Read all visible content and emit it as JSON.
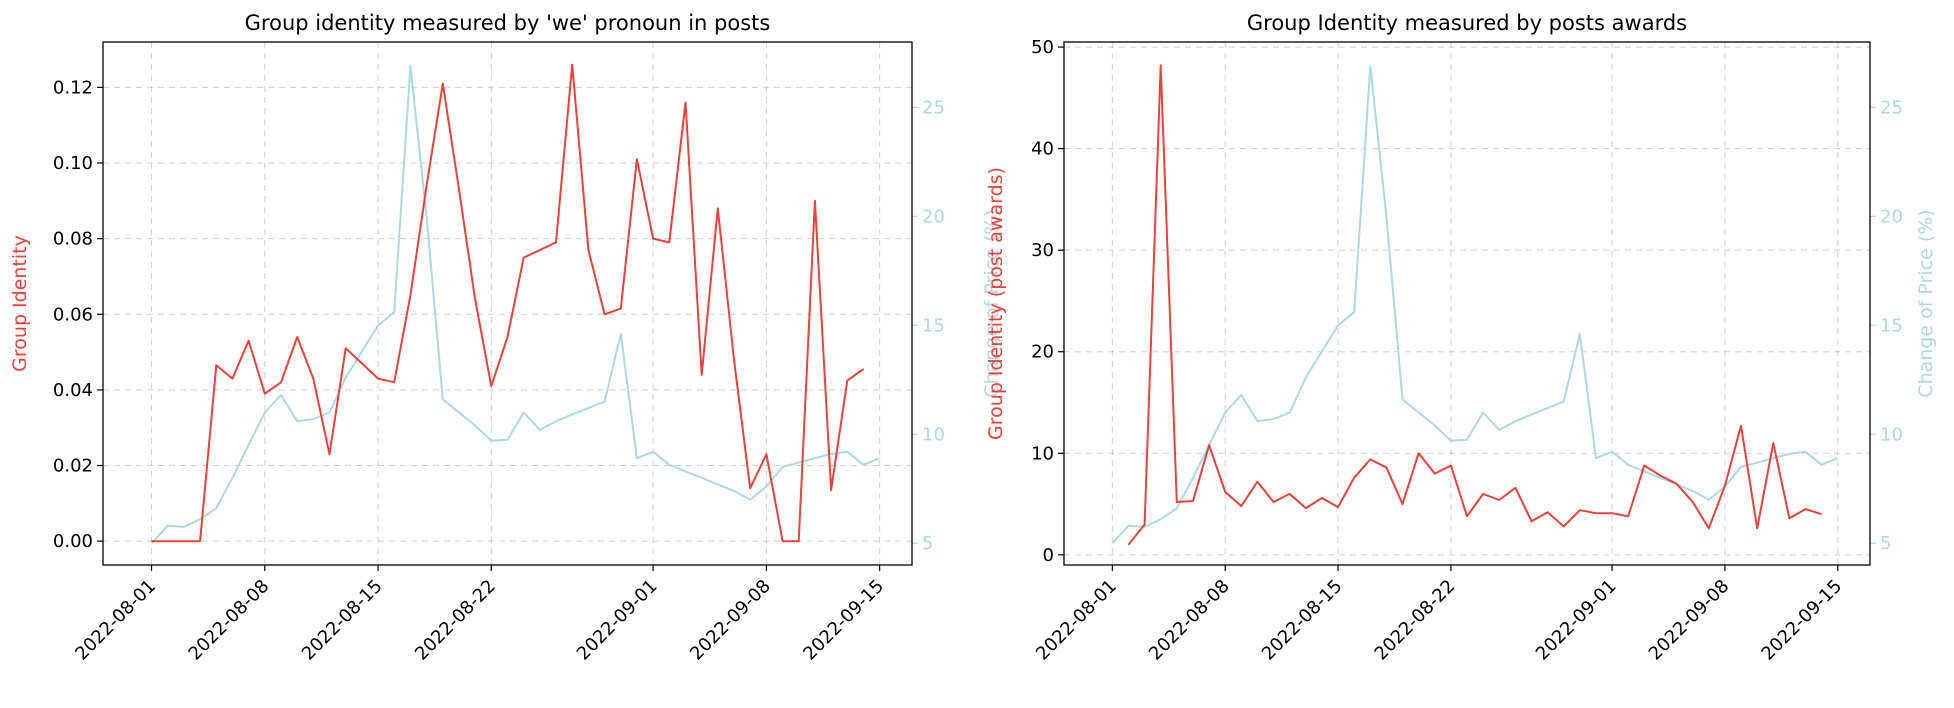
{
  "colors": {
    "primary": "#e8423a",
    "secondary": "#add8e6"
  },
  "chart_data": [
    {
      "type": "line",
      "title": "Group identity measured by 'we' pronoun in posts",
      "ylabel": "Group Identity",
      "y2label": "Change of Price (%)",
      "xlabel": "",
      "grid": true,
      "x_ticks": [
        "2022-08-01",
        "2022-08-08",
        "2022-08-15",
        "2022-08-22",
        "2022-09-01",
        "2022-09-08",
        "2022-09-15"
      ],
      "x_range": [
        "2022-07-29",
        "2022-09-17"
      ],
      "y_ticks": [
        "0.00",
        "0.02",
        "0.04",
        "0.06",
        "0.08",
        "0.10",
        "0.12"
      ],
      "ylim": [
        -0.0063,
        0.132
      ],
      "y2_ticks": [
        "5",
        "10",
        "15",
        "20",
        "25"
      ],
      "y2lim": [
        4.0,
        28.0
      ],
      "series": [
        {
          "axis": "left",
          "x": [
            "2022-08-01",
            "2022-08-02",
            "2022-08-03",
            "2022-08-04",
            "2022-08-05",
            "2022-08-06",
            "2022-08-07",
            "2022-08-08",
            "2022-08-09",
            "2022-08-10",
            "2022-08-11",
            "2022-08-12",
            "2022-08-13",
            "2022-08-14",
            "2022-08-15",
            "2022-08-16",
            "2022-08-17",
            "2022-08-18",
            "2022-08-19",
            "2022-08-20",
            "2022-08-21",
            "2022-08-22",
            "2022-08-23",
            "2022-08-24",
            "2022-08-25",
            "2022-08-26",
            "2022-08-27",
            "2022-08-28",
            "2022-08-29",
            "2022-08-30",
            "2022-08-31",
            "2022-09-01",
            "2022-09-02",
            "2022-09-03",
            "2022-09-04",
            "2022-09-05",
            "2022-09-06",
            "2022-09-07",
            "2022-09-08",
            "2022-09-09",
            "2022-09-10",
            "2022-09-11",
            "2022-09-12",
            "2022-09-13",
            "2022-09-14"
          ],
          "values": [
            0.0,
            0.0,
            0.0,
            0.0,
            0.0465,
            0.043,
            0.053,
            0.039,
            0.042,
            0.054,
            0.043,
            0.023,
            0.051,
            0.047,
            0.043,
            0.042,
            0.065,
            0.094,
            0.121,
            0.093,
            0.064,
            0.041,
            0.054,
            0.075,
            0.077,
            0.079,
            0.126,
            0.077,
            0.06,
            0.0615,
            0.101,
            0.08,
            0.079,
            0.116,
            0.044,
            0.088,
            0.048,
            0.014,
            0.023,
            0.0,
            0.0,
            0.09,
            0.0135,
            0.0425,
            0.0455
          ]
        },
        {
          "axis": "right",
          "x": [
            "2022-08-01",
            "2022-08-02",
            "2022-08-03",
            "2022-08-04",
            "2022-08-05",
            "2022-08-06",
            "2022-08-07",
            "2022-08-08",
            "2022-08-09",
            "2022-08-10",
            "2022-08-11",
            "2022-08-12",
            "2022-08-13",
            "2022-08-14",
            "2022-08-15",
            "2022-08-16",
            "2022-08-17",
            "2022-08-18",
            "2022-08-19",
            "2022-08-20",
            "2022-08-21",
            "2022-08-22",
            "2022-08-23",
            "2022-08-24",
            "2022-08-25",
            "2022-08-26",
            "2022-08-27",
            "2022-08-28",
            "2022-08-29",
            "2022-08-30",
            "2022-08-31",
            "2022-09-01",
            "2022-09-02",
            "2022-09-03",
            "2022-09-04",
            "2022-09-05",
            "2022-09-06",
            "2022-09-07",
            "2022-09-08",
            "2022-09-09",
            "2022-09-10",
            "2022-09-11",
            "2022-09-12",
            "2022-09-13",
            "2022-09-14",
            "2022-09-15"
          ],
          "values": [
            5.0,
            5.8,
            5.75,
            6.1,
            6.6,
            8.0,
            9.5,
            11.0,
            11.8,
            10.6,
            10.7,
            11.0,
            12.6,
            13.8,
            15.0,
            15.6,
            26.9,
            20.0,
            11.6,
            11.0,
            10.4,
            9.7,
            9.75,
            11.0,
            10.2,
            10.6,
            10.9,
            11.2,
            11.5,
            14.6,
            8.9,
            9.2,
            8.6,
            8.3,
            8.0,
            7.7,
            7.4,
            7.0,
            7.6,
            8.5,
            8.7,
            8.9,
            9.1,
            9.2,
            8.6,
            8.9
          ]
        }
      ]
    },
    {
      "type": "line",
      "title": "Group Identity measured by posts awards",
      "ylabel": "Group Identity (post awards)",
      "y2label": "Change of Price (%)",
      "xlabel": "",
      "grid": true,
      "x_ticks": [
        "2022-08-01",
        "2022-08-08",
        "2022-08-15",
        "2022-08-22",
        "2022-09-01",
        "2022-09-08",
        "2022-09-15"
      ],
      "x_range": [
        "2022-07-29",
        "2022-09-17"
      ],
      "y_ticks": [
        "0",
        "10",
        "20",
        "30",
        "40",
        "50"
      ],
      "ylim": [
        -1.0,
        50.5
      ],
      "y2_ticks": [
        "5",
        "10",
        "15",
        "20",
        "25"
      ],
      "y2lim": [
        4.0,
        28.0
      ],
      "series": [
        {
          "axis": "left",
          "x": [
            "2022-08-02",
            "2022-08-03",
            "2022-08-04",
            "2022-08-05",
            "2022-08-06",
            "2022-08-07",
            "2022-08-08",
            "2022-08-09",
            "2022-08-10",
            "2022-08-11",
            "2022-08-12",
            "2022-08-13",
            "2022-08-14",
            "2022-08-15",
            "2022-08-16",
            "2022-08-17",
            "2022-08-18",
            "2022-08-19",
            "2022-08-20",
            "2022-08-21",
            "2022-08-22",
            "2022-08-23",
            "2022-08-24",
            "2022-08-25",
            "2022-08-26",
            "2022-08-27",
            "2022-08-28",
            "2022-08-29",
            "2022-08-30",
            "2022-08-31",
            "2022-09-01",
            "2022-09-02",
            "2022-09-03",
            "2022-09-04",
            "2022-09-05",
            "2022-09-06",
            "2022-09-07",
            "2022-09-08",
            "2022-09-09",
            "2022-09-10",
            "2022-09-11",
            "2022-09-12",
            "2022-09-13",
            "2022-09-14"
          ],
          "values": [
            1.0,
            3.0,
            48.2,
            5.2,
            5.3,
            10.8,
            6.2,
            4.8,
            7.2,
            5.2,
            6.0,
            4.6,
            5.6,
            4.7,
            7.6,
            9.4,
            8.6,
            5.0,
            10.0,
            8.0,
            8.8,
            3.8,
            6.0,
            5.4,
            6.6,
            3.3,
            4.2,
            2.8,
            4.4,
            4.1,
            4.1,
            3.8,
            8.8,
            7.8,
            7.0,
            5.2,
            2.6,
            6.8,
            12.7,
            2.6,
            11.0,
            3.6,
            4.5,
            4.0
          ]
        },
        {
          "axis": "right",
          "x": [
            "2022-08-01",
            "2022-08-02",
            "2022-08-03",
            "2022-08-04",
            "2022-08-05",
            "2022-08-06",
            "2022-08-07",
            "2022-08-08",
            "2022-08-09",
            "2022-08-10",
            "2022-08-11",
            "2022-08-12",
            "2022-08-13",
            "2022-08-14",
            "2022-08-15",
            "2022-08-16",
            "2022-08-17",
            "2022-08-18",
            "2022-08-19",
            "2022-08-20",
            "2022-08-21",
            "2022-08-22",
            "2022-08-23",
            "2022-08-24",
            "2022-08-25",
            "2022-08-26",
            "2022-08-27",
            "2022-08-28",
            "2022-08-29",
            "2022-08-30",
            "2022-08-31",
            "2022-09-01",
            "2022-09-02",
            "2022-09-03",
            "2022-09-04",
            "2022-09-05",
            "2022-09-06",
            "2022-09-07",
            "2022-09-08",
            "2022-09-09",
            "2022-09-10",
            "2022-09-11",
            "2022-09-12",
            "2022-09-13",
            "2022-09-14",
            "2022-09-15"
          ],
          "values": [
            5.0,
            5.8,
            5.75,
            6.1,
            6.6,
            8.0,
            9.5,
            11.0,
            11.8,
            10.6,
            10.7,
            11.0,
            12.6,
            13.8,
            15.0,
            15.6,
            26.9,
            20.0,
            11.6,
            11.0,
            10.4,
            9.7,
            9.75,
            11.0,
            10.2,
            10.6,
            10.9,
            11.2,
            11.5,
            14.6,
            8.9,
            9.2,
            8.6,
            8.3,
            8.0,
            7.7,
            7.4,
            7.0,
            7.6,
            8.5,
            8.7,
            8.9,
            9.1,
            9.2,
            8.6,
            8.9
          ]
        }
      ]
    }
  ]
}
